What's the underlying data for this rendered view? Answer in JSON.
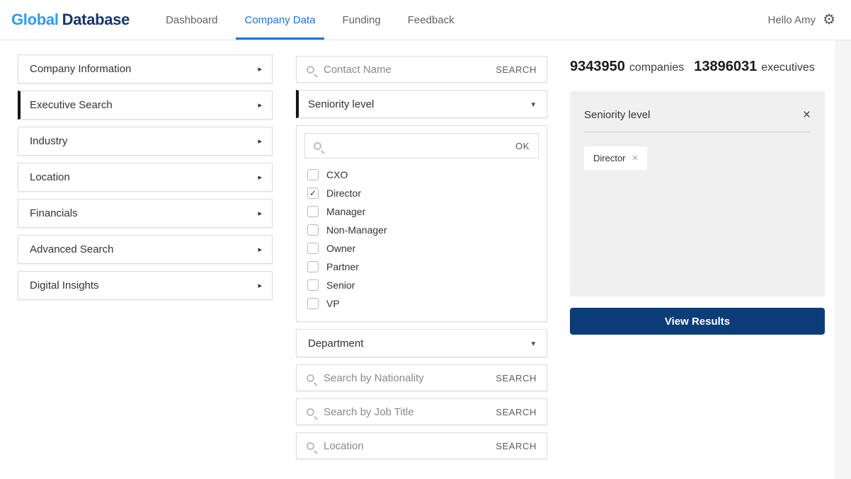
{
  "icons": {
    "gear": "⚙",
    "chevron_right": "▸",
    "caret_down": "▾",
    "close": "×",
    "check": "✓"
  },
  "header": {
    "logo": {
      "part1": "Global",
      "part2": "Database"
    },
    "nav": [
      {
        "label": "Dashboard",
        "active": false
      },
      {
        "label": "Company Data",
        "active": true
      },
      {
        "label": "Funding",
        "active": false
      },
      {
        "label": "Feedback",
        "active": false
      }
    ],
    "greeting": "Hello Amy"
  },
  "sidebar": {
    "items": [
      {
        "label": "Company Information",
        "active": false
      },
      {
        "label": "Executive Search",
        "active": true
      },
      {
        "label": "Industry",
        "active": false
      },
      {
        "label": "Location",
        "active": false
      },
      {
        "label": "Financials",
        "active": false
      },
      {
        "label": "Advanced Search",
        "active": false
      },
      {
        "label": "Digital Insights",
        "active": false
      }
    ]
  },
  "filters": {
    "contact_name": {
      "placeholder": "Contact Name",
      "button": "SEARCH"
    },
    "seniority_dropdown": {
      "label": "Seniority level"
    },
    "seniority_panel": {
      "search_placeholder": "",
      "ok_button": "OK",
      "options": [
        {
          "label": "CXO",
          "checked": false,
          "mark": ""
        },
        {
          "label": "Director",
          "checked": true,
          "mark": "✓"
        },
        {
          "label": "Manager",
          "checked": false,
          "mark": ""
        },
        {
          "label": "Non-Manager",
          "checked": false,
          "mark": ""
        },
        {
          "label": "Owner",
          "checked": false,
          "mark": ""
        },
        {
          "label": "Partner",
          "checked": false,
          "mark": ""
        },
        {
          "label": "Senior",
          "checked": false,
          "mark": ""
        },
        {
          "label": "VP",
          "checked": false,
          "mark": ""
        }
      ]
    },
    "department_dropdown": {
      "label": "Department"
    },
    "nationality": {
      "placeholder": "Search by Nationality",
      "button": "SEARCH"
    },
    "job_title": {
      "placeholder": "Search by Job Title",
      "button": "SEARCH"
    },
    "location": {
      "placeholder": "Location",
      "button": "SEARCH"
    }
  },
  "results": {
    "companies_count": "9343950",
    "companies_label": "companies",
    "executives_count": "13896031",
    "executives_label": "executives",
    "selected_filter": {
      "title": "Seniority level",
      "tags": [
        {
          "label": "Director"
        }
      ]
    },
    "view_results_label": "View Results"
  },
  "colors": {
    "accent_blue": "#1a73e8",
    "logo_light_blue": "#2d9bf0",
    "logo_navy": "#16366e",
    "button_navy": "#0d3c7a",
    "card_gray": "#f0f0f0"
  }
}
